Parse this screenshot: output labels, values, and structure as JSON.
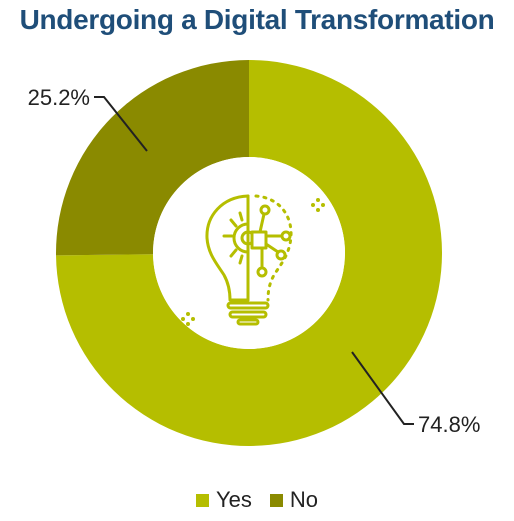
{
  "chart_data": {
    "type": "pie",
    "title": "Undergoing a Digital Transformation",
    "categories": [
      "Yes",
      "No"
    ],
    "values": [
      74.8,
      25.2
    ],
    "data_labels": [
      "74.8%",
      "25.2%"
    ],
    "colors": [
      "#b5be00",
      "#8a8a00"
    ],
    "donut": true,
    "center_icon": "lightbulb-gear-circuit-icon",
    "legend_position": "bottom"
  }
}
